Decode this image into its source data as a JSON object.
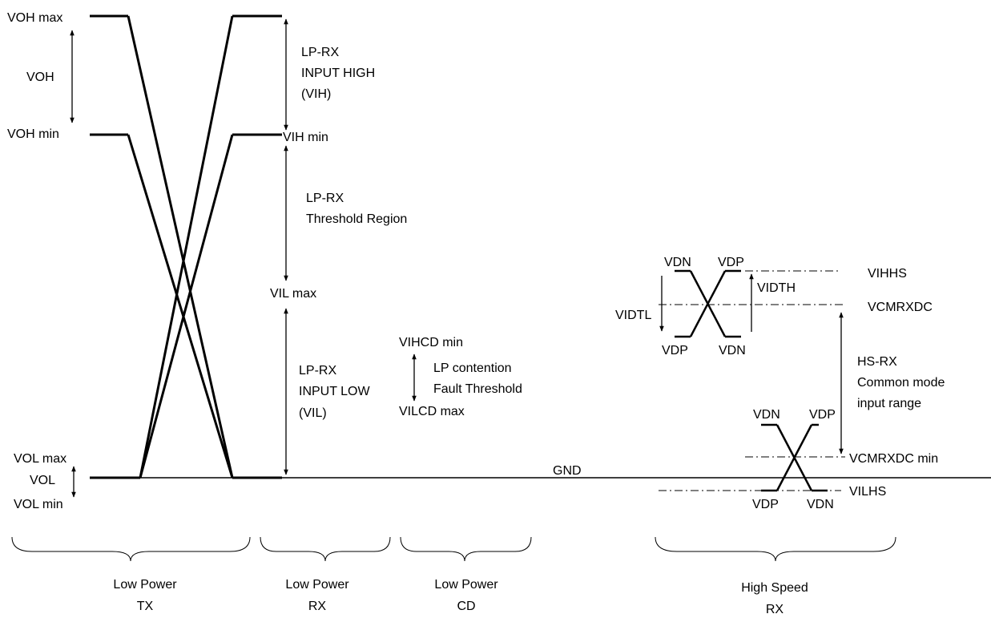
{
  "colors": {
    "line": "#000000",
    "background": "#ffffff"
  },
  "tx_labels": {
    "voh_max": "VOH max",
    "voh": "VOH",
    "voh_min": "VOH min",
    "vol_max": "VOL max",
    "vol": "VOL",
    "vol_min": "VOL min"
  },
  "rx_labels": {
    "input_high_1": "LP-RX",
    "input_high_2": "INPUT HIGH",
    "input_high_3": "(VIH)",
    "vih_min": "VIH min",
    "threshold_1": "LP-RX",
    "threshold_2": "Threshold Region",
    "vil_max": "VIL max",
    "input_low_1": "LP-RX",
    "input_low_2": "INPUT LOW",
    "input_low_3": "(VIL)"
  },
  "cd_labels": {
    "vihcd_min": "VIHCD min",
    "contention_1": "LP contention",
    "contention_2": "Fault Threshold",
    "vilcd_max": "VILCD max"
  },
  "gnd_label": "GND",
  "hs_labels": {
    "vdn_top_left": "VDN",
    "vdp_top_right": "VDP",
    "vdp_bottom_left": "VDP",
    "vdn_bottom_right": "VDN",
    "vihhs": "VIHHS",
    "vidth": "VIDTH",
    "vcmrxdc": "VCMRXDC",
    "vidtl": "VIDTL",
    "hsrx_1": "HS-RX",
    "hsrx_2": "Common mode",
    "hsrx_3": "input range",
    "vdn_low_left": "VDN",
    "vdp_low_right": "VDP",
    "vcmrxdc_min": "VCMRXDC min",
    "vilhs": "VILHS",
    "vdp_low_bottom_left": "VDP",
    "vdn_low_bottom_right": "VDN"
  },
  "sections": [
    {
      "line1": "Low Power",
      "line2": "TX"
    },
    {
      "line1": "Low Power",
      "line2": "RX"
    },
    {
      "line1": "Low Power",
      "line2": "CD"
    },
    {
      "line1": "High Speed",
      "line2": "RX"
    }
  ]
}
